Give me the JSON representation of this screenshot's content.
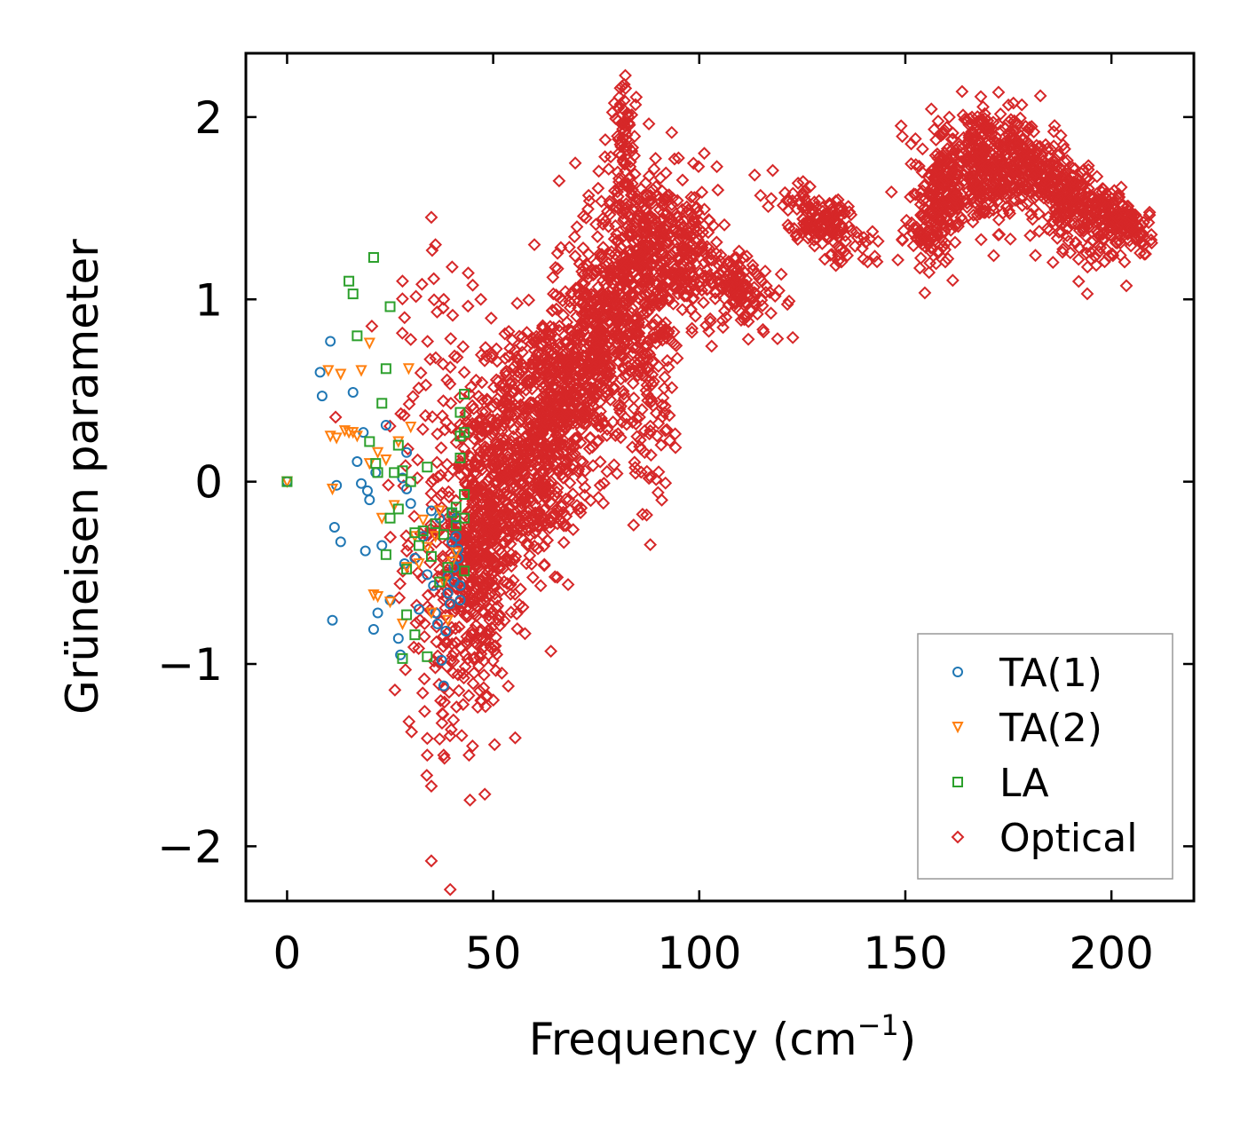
{
  "chart_data": {
    "type": "scatter",
    "title": "",
    "xlabel": "Frequency (cm",
    "xlabel_superscript": "−1",
    "xlabel_suffix": ")",
    "ylabel": "Grüneisen parameter",
    "xlim": [
      -10,
      220
    ],
    "ylim": [
      -2.3,
      2.35
    ],
    "xticks": [
      0,
      50,
      100,
      150,
      200
    ],
    "xtick_labels": [
      "0",
      "50",
      "100",
      "150",
      "200"
    ],
    "yticks": [
      -2,
      -1,
      0,
      1,
      2
    ],
    "ytick_labels": [
      "−2",
      "−1",
      "0",
      "1",
      "2"
    ],
    "grid": false,
    "legend_position": "bottom-right",
    "series": [
      {
        "name": "TA(1)",
        "marker": "circle",
        "color": "#1f77b4",
        "points": [
          [
            0,
            0
          ],
          [
            8,
            0.6
          ],
          [
            8.5,
            0.47
          ],
          [
            10.5,
            0.77
          ],
          [
            11,
            -0.76
          ],
          [
            11.5,
            -0.25
          ],
          [
            12,
            -0.02
          ],
          [
            13,
            -0.33
          ],
          [
            16,
            0.49
          ],
          [
            17,
            0.11
          ],
          [
            18,
            -0.01
          ],
          [
            18.5,
            0.27
          ],
          [
            19,
            -0.38
          ],
          [
            19.5,
            -0.05
          ],
          [
            20,
            -0.1
          ],
          [
            21,
            -0.81
          ],
          [
            21.5,
            0.05
          ],
          [
            22,
            -0.72
          ],
          [
            23,
            -0.35
          ],
          [
            24,
            0.31
          ],
          [
            25,
            -0.65
          ],
          [
            27,
            -0.86
          ],
          [
            27.5,
            -0.95
          ],
          [
            28,
            0.02
          ],
          [
            28.5,
            -0.45
          ],
          [
            29,
            0.16
          ],
          [
            29,
            -0.04
          ],
          [
            30,
            -0.12
          ],
          [
            31,
            -0.42
          ],
          [
            32,
            -0.7
          ],
          [
            33,
            -0.3
          ],
          [
            34,
            -0.51
          ],
          [
            35,
            -0.16
          ],
          [
            35.5,
            -0.57
          ],
          [
            36,
            -0.72
          ],
          [
            36.5,
            -0.78
          ],
          [
            37,
            -0.2
          ],
          [
            37.5,
            -0.98
          ],
          [
            38,
            -1.12
          ],
          [
            38.5,
            -0.82
          ],
          [
            39,
            -0.52
          ],
          [
            39,
            -0.61
          ],
          [
            39.5,
            -0.67
          ],
          [
            40,
            -0.17
          ],
          [
            40,
            -0.33
          ],
          [
            40.5,
            -0.47
          ],
          [
            40.5,
            -0.55
          ],
          [
            41,
            -0.2
          ],
          [
            41,
            -0.3
          ],
          [
            41.5,
            -0.37
          ],
          [
            41.5,
            -0.42
          ],
          [
            42,
            -0.65
          ],
          [
            42,
            -0.57
          ]
        ]
      },
      {
        "name": "TA(2)",
        "marker": "triangle-down",
        "color": "#ff7f0e",
        "points": [
          [
            0,
            0
          ],
          [
            10,
            0.61
          ],
          [
            10.5,
            0.25
          ],
          [
            11,
            -0.04
          ],
          [
            12,
            0.24
          ],
          [
            13,
            0.59
          ],
          [
            14,
            0.28
          ],
          [
            15,
            0.27
          ],
          [
            16,
            0.27
          ],
          [
            17,
            0.25
          ],
          [
            18,
            0.61
          ],
          [
            20,
            0.76
          ],
          [
            20,
            0.1
          ],
          [
            21,
            -0.62
          ],
          [
            22,
            -0.63
          ],
          [
            22,
            0.16
          ],
          [
            23,
            -0.2
          ],
          [
            24,
            0.12
          ],
          [
            25,
            -0.66
          ],
          [
            26,
            -0.13
          ],
          [
            27,
            0.22
          ],
          [
            28,
            -0.78
          ],
          [
            29,
            -0.47
          ],
          [
            29.5,
            0.62
          ],
          [
            30,
            0.3
          ],
          [
            31,
            -0.3
          ],
          [
            32,
            -0.45
          ],
          [
            33,
            -0.21
          ],
          [
            34,
            -0.36
          ],
          [
            35,
            -0.72
          ],
          [
            36,
            -0.3
          ],
          [
            37,
            -0.16
          ],
          [
            38,
            -0.55
          ],
          [
            39,
            -0.76
          ],
          [
            40,
            -0.44
          ],
          [
            41,
            -0.39
          ]
        ]
      },
      {
        "name": "LA",
        "marker": "square",
        "color": "#2ca02c",
        "points": [
          [
            0,
            0
          ],
          [
            15,
            1.1
          ],
          [
            16,
            1.03
          ],
          [
            17,
            0.8
          ],
          [
            20,
            0.22
          ],
          [
            21,
            1.23
          ],
          [
            21.5,
            0.1
          ],
          [
            22,
            0.05
          ],
          [
            23,
            0.43
          ],
          [
            24,
            0.62
          ],
          [
            24,
            -0.4
          ],
          [
            25,
            0.96
          ],
          [
            25,
            -0.2
          ],
          [
            26,
            0.05
          ],
          [
            27,
            -0.15
          ],
          [
            27,
            0.2
          ],
          [
            28,
            0.06
          ],
          [
            28,
            -0.97
          ],
          [
            29,
            -0.48
          ],
          [
            29,
            -0.73
          ],
          [
            30,
            0.0
          ],
          [
            31,
            -0.28
          ],
          [
            31,
            -0.84
          ],
          [
            32,
            -0.35
          ],
          [
            33,
            -0.27
          ],
          [
            34,
            0.08
          ],
          [
            34,
            -0.96
          ],
          [
            35,
            -0.41
          ],
          [
            36,
            -0.23
          ],
          [
            37,
            -0.55
          ],
          [
            38,
            -0.29
          ],
          [
            39,
            -0.47
          ],
          [
            40,
            -0.17
          ],
          [
            41,
            -0.14
          ],
          [
            41,
            -0.24
          ],
          [
            42,
            0.25
          ],
          [
            42,
            0.38
          ],
          [
            42,
            0.13
          ],
          [
            43,
            0.48
          ],
          [
            43,
            -0.07
          ],
          [
            43,
            -0.2
          ],
          [
            43,
            -0.49
          ],
          [
            43,
            0.27
          ]
        ]
      },
      {
        "name": "Optical",
        "marker": "diamond",
        "color": "#d62728",
        "clouds": [
          {
            "cx": 36,
            "cy": 0.0,
            "sx": 6,
            "sy": 0.75,
            "n": 120,
            "tilt": 0.0
          },
          {
            "cx": 45,
            "cy": -0.35,
            "sx": 3.5,
            "sy": 0.45,
            "n": 260,
            "tilt": 0.0
          },
          {
            "cx": 50,
            "cy": -0.1,
            "sx": 4,
            "sy": 0.4,
            "n": 300,
            "tilt": 0.035
          },
          {
            "cx": 60,
            "cy": 0.2,
            "sx": 6,
            "sy": 0.35,
            "n": 500,
            "tilt": 0.035
          },
          {
            "cx": 72,
            "cy": 0.65,
            "sx": 6,
            "sy": 0.35,
            "n": 500,
            "tilt": 0.035
          },
          {
            "cx": 84,
            "cy": 1.05,
            "sx": 6,
            "sy": 0.35,
            "n": 420,
            "tilt": 0.02
          },
          {
            "cx": 95,
            "cy": 1.25,
            "sx": 7,
            "sy": 0.18,
            "n": 260,
            "tilt": -0.005
          },
          {
            "cx": 110,
            "cy": 1.05,
            "sx": 5,
            "sy": 0.1,
            "n": 120,
            "tilt": -0.01
          },
          {
            "cx": 130,
            "cy": 1.42,
            "sx": 6,
            "sy": 0.08,
            "n": 160,
            "tilt": -0.012
          },
          {
            "cx": 158,
            "cy": 1.5,
            "sx": 4,
            "sy": 0.15,
            "n": 200,
            "tilt": 0.02
          },
          {
            "cx": 170,
            "cy": 1.72,
            "sx": 7,
            "sy": 0.14,
            "n": 420,
            "tilt": 0.0
          },
          {
            "cx": 188,
            "cy": 1.58,
            "sx": 6,
            "sy": 0.13,
            "n": 320,
            "tilt": -0.015
          },
          {
            "cx": 203,
            "cy": 1.42,
            "sx": 4,
            "sy": 0.07,
            "n": 160,
            "tilt": -0.01
          },
          {
            "cx": 82,
            "cy": 1.9,
            "sx": 1.5,
            "sy": 0.15,
            "n": 60,
            "tilt": 0.0
          },
          {
            "cx": 88,
            "cy": 0.35,
            "sx": 3,
            "sy": 0.3,
            "n": 80,
            "tilt": 0.0
          },
          {
            "cx": 40,
            "cy": -1.0,
            "sx": 6,
            "sy": 0.3,
            "n": 60,
            "tilt": 0.0
          }
        ],
        "points": [
          [
            35,
            -2.08
          ],
          [
            35,
            -1.67
          ],
          [
            34,
            -1.5
          ],
          [
            35,
            1.45
          ],
          [
            36,
            1.3
          ],
          [
            28,
            1.1
          ],
          [
            28.5,
            0.9
          ],
          [
            38,
            1.0
          ],
          [
            47,
            1.0
          ],
          [
            43,
            0.6
          ],
          [
            64,
            -0.93
          ],
          [
            30,
            0.78
          ],
          [
            66,
            1.65
          ],
          [
            94,
            1.77
          ],
          [
            186,
            1.92
          ],
          [
            170,
            1.98
          ],
          [
            75,
            1.2
          ],
          [
            60,
            1.3
          ],
          [
            45,
            -1.45
          ],
          [
            47,
            -1.2
          ],
          [
            38,
            -1.5
          ]
        ]
      }
    ]
  }
}
